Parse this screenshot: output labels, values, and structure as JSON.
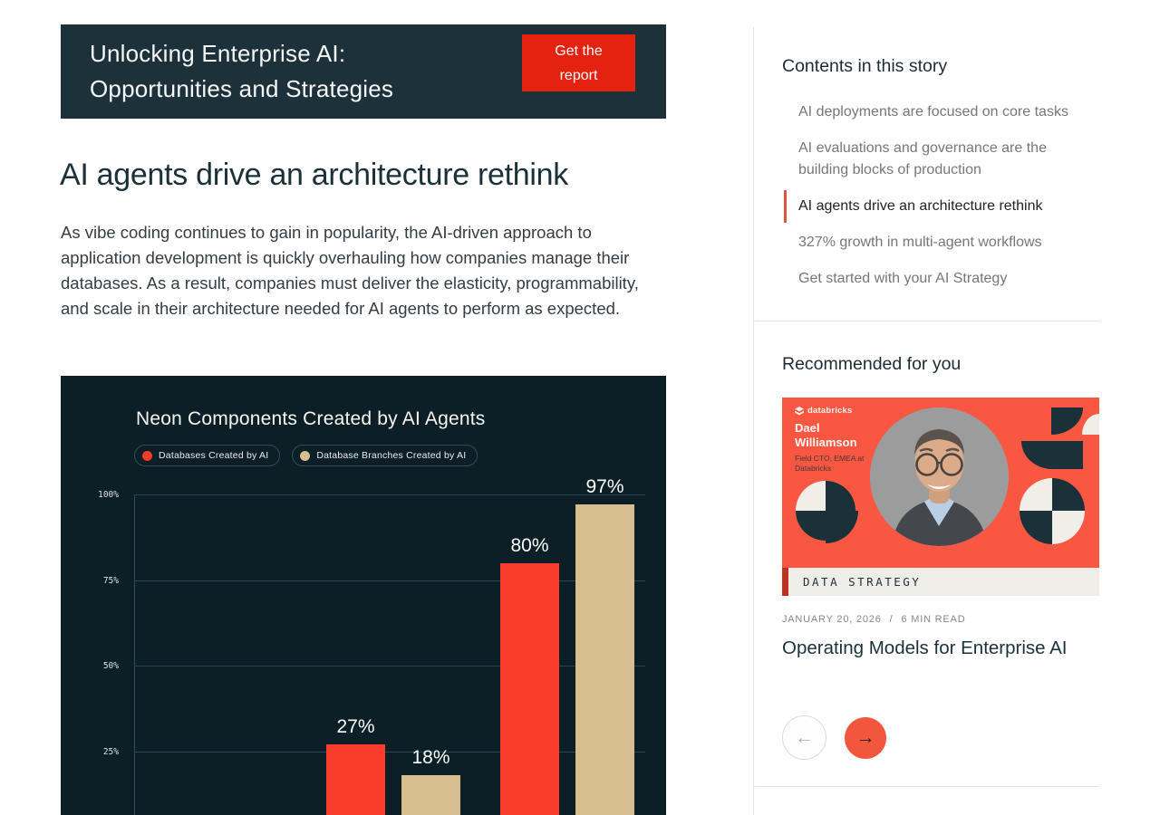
{
  "banner": {
    "title": "Unlocking Enterprise AI:\nOpportunities and Strategies",
    "cta_label": "Get the\nreport",
    "background": "#1C3139",
    "cta_color": "#E5220F"
  },
  "article": {
    "heading": "AI agents drive an architecture rethink",
    "body": "As vibe coding continues to gain in popularity, the AI-driven approach to application development is quickly overhauling how companies manage their databases. As a result, companies must deliver the elasticity, programmability, and scale in their architecture needed for AI agents to perform as expected."
  },
  "chart_data": {
    "type": "bar",
    "title": "Neon Components Created by AI Agents",
    "series": [
      {
        "name": "Databases Created by AI",
        "color": "#F93C2B",
        "values": [
          27,
          80
        ]
      },
      {
        "name": "Database Branches Created by AI",
        "color": "#D6BE90",
        "values": [
          18,
          97
        ]
      }
    ],
    "bar_labels": [
      "27%",
      "18%",
      "80%",
      "97%"
    ],
    "y_ticks": [
      "100%",
      "75%",
      "50%",
      "25%"
    ],
    "ylim": [
      0,
      100
    ],
    "grid": true,
    "legend_position": "top",
    "background": "#0D1F26"
  },
  "toc": {
    "heading": "Contents in this story",
    "items": [
      {
        "label": "AI deployments are focused on core tasks",
        "active": false
      },
      {
        "label": "AI evaluations and governance are the building blocks of production",
        "active": false
      },
      {
        "label": "AI agents drive an architecture rethink",
        "active": true
      },
      {
        "label": "327% growth in multi-agent workflows",
        "active": false
      },
      {
        "label": "Get started with your AI Strategy",
        "active": false
      }
    ],
    "active_accent_color": "#DD5440"
  },
  "recommended": {
    "heading": "Recommended for you",
    "card": {
      "brand": "databricks",
      "person_name": "Dael\nWilliamson",
      "person_role": "Field CTO, EMEA at\nDatabricks",
      "category": "DATA STRATEGY",
      "date": "JANUARY 20, 2026",
      "meta_separator": "/",
      "read_time": "6 MIN READ",
      "title": "Operating Models for Enterprise AI",
      "image_background": "#FA5742"
    }
  },
  "pager": {
    "prev_icon": "←",
    "next_icon": "→",
    "next_color": "#F2573E"
  }
}
